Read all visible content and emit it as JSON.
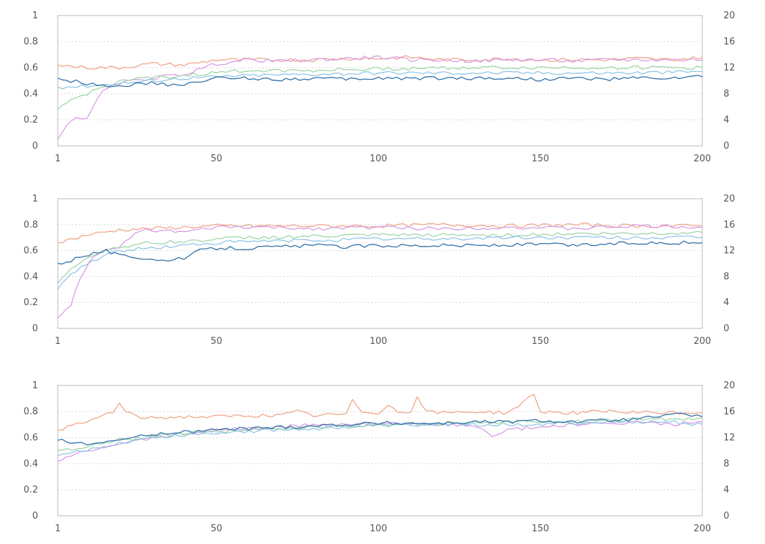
{
  "chart_data": [
    {
      "type": "line",
      "title": "",
      "xlabel": "",
      "ylabel": "",
      "xlim": [
        1,
        200
      ],
      "ylim": [
        0,
        1
      ],
      "y2lim": [
        0,
        20
      ],
      "x_ticks": [
        "1",
        "50",
        "100",
        "150",
        "200"
      ],
      "x_tick_values": [
        1,
        50,
        100,
        150,
        200
      ],
      "y_ticks": [
        "0",
        "0.2",
        "0.4",
        "0.6",
        "0.8",
        "1"
      ],
      "y2_ticks": [
        "0",
        "4",
        "8",
        "12",
        "16",
        "20"
      ],
      "grid": true,
      "series": [
        {
          "color": "#f0a58a",
          "x": [
            1,
            10,
            20,
            30,
            40,
            50,
            60,
            70,
            80,
            90,
            100,
            110,
            120,
            130,
            140,
            150,
            160,
            170,
            180,
            190,
            200
          ],
          "y": [
            0.62,
            0.6,
            0.6,
            0.63,
            0.62,
            0.66,
            0.66,
            0.66,
            0.66,
            0.67,
            0.67,
            0.68,
            0.66,
            0.66,
            0.67,
            0.66,
            0.66,
            0.66,
            0.67,
            0.66,
            0.68
          ]
        },
        {
          "color": "#d79be6",
          "x": [
            1,
            5,
            10,
            15,
            20,
            25,
            30,
            40,
            50,
            60,
            70,
            80,
            90,
            100,
            110,
            120,
            130,
            140,
            150,
            160,
            170,
            180,
            190,
            200
          ],
          "y": [
            0.05,
            0.2,
            0.22,
            0.42,
            0.48,
            0.5,
            0.52,
            0.55,
            0.63,
            0.66,
            0.65,
            0.66,
            0.67,
            0.68,
            0.66,
            0.66,
            0.65,
            0.66,
            0.66,
            0.65,
            0.66,
            0.66,
            0.66,
            0.66
          ]
        },
        {
          "color": "#9ed6a8",
          "x": [
            1,
            5,
            10,
            15,
            20,
            30,
            40,
            50,
            60,
            80,
            100,
            120,
            140,
            160,
            180,
            200
          ],
          "y": [
            0.28,
            0.35,
            0.4,
            0.45,
            0.5,
            0.52,
            0.54,
            0.56,
            0.58,
            0.58,
            0.59,
            0.6,
            0.6,
            0.6,
            0.6,
            0.6
          ]
        },
        {
          "color": "#8fc6e6",
          "x": [
            1,
            10,
            20,
            30,
            40,
            50,
            60,
            80,
            100,
            120,
            140,
            160,
            180,
            200
          ],
          "y": [
            0.45,
            0.46,
            0.48,
            0.5,
            0.52,
            0.53,
            0.54,
            0.55,
            0.56,
            0.56,
            0.56,
            0.56,
            0.56,
            0.57
          ]
        },
        {
          "color": "#2f6fa8",
          "x": [
            1,
            5,
            10,
            15,
            20,
            25,
            30,
            35,
            40,
            45,
            50,
            60,
            70,
            80,
            90,
            100,
            110,
            120,
            130,
            140,
            150,
            160,
            170,
            180,
            190,
            200
          ],
          "y": [
            0.52,
            0.5,
            0.48,
            0.47,
            0.46,
            0.47,
            0.48,
            0.47,
            0.46,
            0.5,
            0.52,
            0.52,
            0.51,
            0.52,
            0.51,
            0.52,
            0.52,
            0.52,
            0.52,
            0.52,
            0.51,
            0.52,
            0.51,
            0.52,
            0.52,
            0.53
          ]
        }
      ]
    },
    {
      "type": "line",
      "title": "",
      "xlabel": "",
      "ylabel": "",
      "xlim": [
        1,
        200
      ],
      "ylim": [
        0,
        1
      ],
      "y2lim": [
        0,
        20
      ],
      "x_ticks": [
        "1",
        "50",
        "100",
        "150",
        "200"
      ],
      "x_tick_values": [
        1,
        50,
        100,
        150,
        200
      ],
      "y_ticks": [
        "0",
        "0.2",
        "0.4",
        "0.6",
        "0.8",
        "1"
      ],
      "y2_ticks": [
        "0",
        "4",
        "8",
        "12",
        "16",
        "20"
      ],
      "grid": true,
      "series": [
        {
          "color": "#f0a58a",
          "x": [
            1,
            10,
            20,
            30,
            40,
            50,
            60,
            80,
            100,
            120,
            140,
            160,
            180,
            200
          ],
          "y": [
            0.66,
            0.72,
            0.76,
            0.77,
            0.78,
            0.79,
            0.79,
            0.79,
            0.79,
            0.8,
            0.79,
            0.8,
            0.79,
            0.79
          ]
        },
        {
          "color": "#d79be6",
          "x": [
            1,
            5,
            8,
            12,
            16,
            20,
            25,
            30,
            40,
            50,
            60,
            80,
            100,
            120,
            140,
            160,
            180,
            200
          ],
          "y": [
            0.08,
            0.18,
            0.4,
            0.55,
            0.6,
            0.62,
            0.75,
            0.76,
            0.74,
            0.78,
            0.78,
            0.77,
            0.78,
            0.77,
            0.78,
            0.77,
            0.79,
            0.78
          ]
        },
        {
          "color": "#9ed6a8",
          "x": [
            1,
            5,
            10,
            15,
            20,
            30,
            40,
            50,
            60,
            80,
            100,
            120,
            140,
            160,
            180,
            200
          ],
          "y": [
            0.35,
            0.45,
            0.55,
            0.6,
            0.63,
            0.66,
            0.67,
            0.69,
            0.7,
            0.71,
            0.72,
            0.72,
            0.72,
            0.73,
            0.73,
            0.74
          ]
        },
        {
          "color": "#8fc6e6",
          "x": [
            1,
            5,
            10,
            15,
            20,
            30,
            40,
            50,
            60,
            80,
            100,
            120,
            140,
            160,
            180,
            200
          ],
          "y": [
            0.3,
            0.42,
            0.5,
            0.56,
            0.6,
            0.62,
            0.64,
            0.66,
            0.67,
            0.68,
            0.69,
            0.69,
            0.7,
            0.7,
            0.7,
            0.7
          ]
        },
        {
          "color": "#2f6fa8",
          "x": [
            1,
            5,
            8,
            12,
            16,
            20,
            25,
            30,
            35,
            40,
            45,
            50,
            60,
            70,
            80,
            90,
            100,
            110,
            120,
            130,
            140,
            150,
            160,
            170,
            180,
            190,
            200
          ],
          "y": [
            0.5,
            0.52,
            0.56,
            0.58,
            0.6,
            0.56,
            0.55,
            0.54,
            0.52,
            0.54,
            0.6,
            0.62,
            0.62,
            0.63,
            0.64,
            0.63,
            0.64,
            0.64,
            0.64,
            0.64,
            0.64,
            0.65,
            0.64,
            0.65,
            0.66,
            0.66,
            0.66
          ]
        }
      ]
    },
    {
      "type": "line",
      "title": "",
      "xlabel": "",
      "ylabel": "",
      "xlim": [
        1,
        200
      ],
      "ylim": [
        0,
        1
      ],
      "y2lim": [
        0,
        20
      ],
      "x_ticks": [
        "1",
        "50",
        "100",
        "150",
        "200"
      ],
      "x_tick_values": [
        1,
        50,
        100,
        150,
        200
      ],
      "y_ticks": [
        "0",
        "0.2",
        "0.4",
        "0.6",
        "0.8",
        "1"
      ],
      "y2_ticks": [
        "0",
        "4",
        "8",
        "12",
        "16",
        "20"
      ],
      "grid": true,
      "series": [
        {
          "color": "#f0a58a",
          "x": [
            1,
            10,
            18,
            20,
            22,
            25,
            30,
            40,
            50,
            60,
            70,
            75,
            80,
            90,
            92,
            95,
            100,
            103,
            106,
            110,
            112,
            115,
            120,
            130,
            140,
            148,
            150,
            160,
            170,
            180,
            190,
            200
          ],
          "y": [
            0.66,
            0.72,
            0.8,
            0.86,
            0.8,
            0.76,
            0.75,
            0.76,
            0.76,
            0.77,
            0.77,
            0.8,
            0.77,
            0.78,
            0.88,
            0.8,
            0.79,
            0.86,
            0.79,
            0.8,
            0.9,
            0.8,
            0.79,
            0.8,
            0.79,
            0.93,
            0.8,
            0.79,
            0.8,
            0.79,
            0.79,
            0.79
          ]
        },
        {
          "color": "#d79be6",
          "x": [
            1,
            5,
            10,
            15,
            20,
            25,
            30,
            40,
            50,
            60,
            70,
            80,
            90,
            100,
            110,
            120,
            130,
            135,
            140,
            150,
            160,
            170,
            180,
            190,
            200
          ],
          "y": [
            0.42,
            0.46,
            0.5,
            0.53,
            0.56,
            0.58,
            0.6,
            0.63,
            0.66,
            0.67,
            0.68,
            0.7,
            0.7,
            0.71,
            0.7,
            0.7,
            0.68,
            0.62,
            0.66,
            0.68,
            0.7,
            0.7,
            0.72,
            0.7,
            0.72
          ]
        },
        {
          "color": "#9ed6a8",
          "x": [
            1,
            10,
            20,
            30,
            40,
            50,
            60,
            80,
            100,
            120,
            140,
            160,
            180,
            190,
            200
          ],
          "y": [
            0.5,
            0.53,
            0.58,
            0.61,
            0.63,
            0.65,
            0.66,
            0.68,
            0.7,
            0.71,
            0.72,
            0.72,
            0.74,
            0.74,
            0.75
          ]
        },
        {
          "color": "#8fc6e6",
          "x": [
            1,
            10,
            20,
            30,
            40,
            50,
            60,
            80,
            100,
            120,
            140,
            160,
            180,
            190,
            200
          ],
          "y": [
            0.46,
            0.5,
            0.56,
            0.6,
            0.62,
            0.64,
            0.65,
            0.67,
            0.69,
            0.7,
            0.7,
            0.71,
            0.72,
            0.72,
            0.7
          ]
        },
        {
          "color": "#2f6fa8",
          "x": [
            1,
            5,
            10,
            15,
            20,
            25,
            30,
            40,
            50,
            60,
            70,
            80,
            90,
            100,
            110,
            120,
            130,
            140,
            150,
            160,
            170,
            180,
            185,
            190,
            195,
            200
          ],
          "y": [
            0.58,
            0.56,
            0.55,
            0.57,
            0.58,
            0.6,
            0.63,
            0.64,
            0.66,
            0.67,
            0.68,
            0.69,
            0.7,
            0.71,
            0.71,
            0.71,
            0.72,
            0.72,
            0.73,
            0.72,
            0.73,
            0.74,
            0.76,
            0.77,
            0.78,
            0.76
          ]
        }
      ]
    }
  ]
}
